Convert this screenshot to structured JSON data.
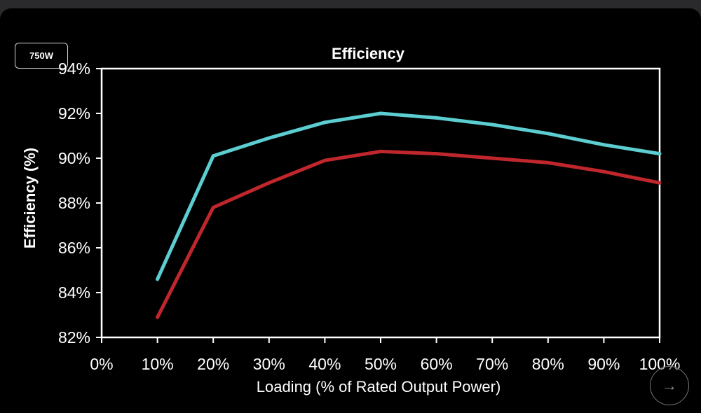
{
  "badge": {
    "label": "750W"
  },
  "controls": {
    "next_icon": "arrow-right-icon"
  },
  "chart_data": {
    "type": "line",
    "title": "Efficiency",
    "xlabel": "Loading (% of Rated Output Power)",
    "ylabel": "Efficiency (%)",
    "x": [
      10,
      20,
      30,
      40,
      50,
      60,
      70,
      80,
      90,
      100
    ],
    "x_tick_labels": [
      "0%",
      "10%",
      "20%",
      "30%",
      "40%",
      "50%",
      "60%",
      "70%",
      "80%",
      "90%",
      "100%"
    ],
    "y_tick_labels": [
      "82%",
      "84%",
      "86%",
      "88%",
      "90%",
      "92%",
      "94%"
    ],
    "xlim": [
      0,
      100
    ],
    "ylim": [
      82,
      94
    ],
    "grid": false,
    "series": [
      {
        "color": "#5ccdd0",
        "values": [
          84.6,
          90.1,
          90.9,
          91.6,
          92.0,
          91.8,
          91.5,
          91.1,
          90.6,
          90.2
        ]
      },
      {
        "color": "#c0272d",
        "values": [
          82.9,
          87.8,
          88.9,
          89.9,
          90.3,
          90.2,
          90.0,
          89.8,
          89.4,
          88.9
        ]
      }
    ]
  }
}
